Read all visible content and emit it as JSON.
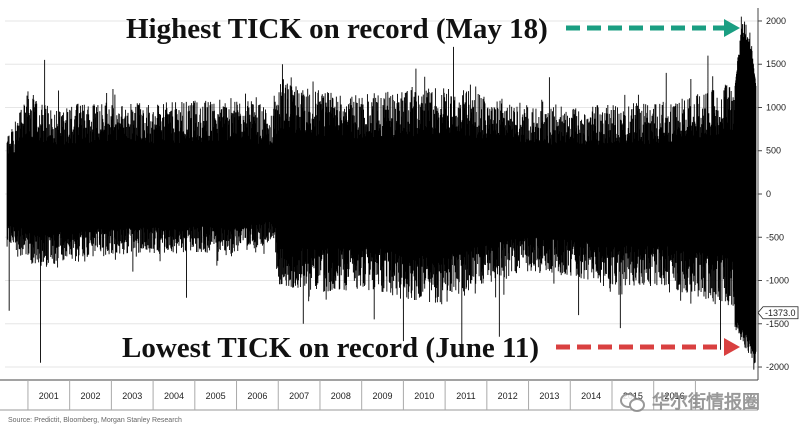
{
  "chart_data": {
    "type": "bar",
    "description_of_marks": "daily NYSE TICK high/low range",
    "x_ticks": [
      "2001",
      "2002",
      "2003",
      "2004",
      "2005",
      "2006",
      "2007",
      "2008",
      "2009",
      "2010",
      "2011",
      "2012",
      "2013",
      "2014",
      "2015",
      "2016"
    ],
    "y_ticks": [
      2000,
      1500,
      1000,
      500,
      0,
      -500,
      -1000,
      -1500,
      -2000
    ],
    "ylim": [
      -2150,
      2150
    ],
    "last_value_label": "-1373.0",
    "last_value": -1373.0,
    "annotations": {
      "highest": "Highest TICK on record (May 18)",
      "lowest": "Lowest TICK on record (June 11)"
    },
    "record_high": 2050,
    "record_low": -2030,
    "bar_color": "#000000",
    "arrow_high_color": "#1a9e82",
    "arrow_low_color": "#d94040",
    "envelope": [
      {
        "x": 2000.5,
        "hi": 700,
        "lo": -550
      },
      {
        "x": 2001.0,
        "hi": 1200,
        "lo": -800
      },
      {
        "x": 2001.5,
        "hi": 1000,
        "lo": -850
      },
      {
        "x": 2002.0,
        "hi": 1050,
        "lo": -750
      },
      {
        "x": 2003.0,
        "hi": 1100,
        "lo": -720
      },
      {
        "x": 2004.0,
        "hi": 1050,
        "lo": -700
      },
      {
        "x": 2005.0,
        "hi": 1080,
        "lo": -680
      },
      {
        "x": 2006.0,
        "hi": 1120,
        "lo": -700
      },
      {
        "x": 2006.9,
        "hi": 1000,
        "lo": -550
      },
      {
        "x": 2007.0,
        "hi": 1300,
        "lo": -1050
      },
      {
        "x": 2008.0,
        "hi": 1200,
        "lo": -1150
      },
      {
        "x": 2009.0,
        "hi": 1150,
        "lo": -1100
      },
      {
        "x": 2010.0,
        "hi": 1200,
        "lo": -1200
      },
      {
        "x": 2011.0,
        "hi": 1250,
        "lo": -1300
      },
      {
        "x": 2012.0,
        "hi": 1150,
        "lo": -1050
      },
      {
        "x": 2013.0,
        "hi": 1050,
        "lo": -900
      },
      {
        "x": 2014.0,
        "hi": 1000,
        "lo": -950
      },
      {
        "x": 2015.0,
        "hi": 1050,
        "lo": -1100
      },
      {
        "x": 2016.0,
        "hi": 1050,
        "lo": -1050
      },
      {
        "x": 2017.0,
        "hi": 1150,
        "lo": -1200
      },
      {
        "x": 2017.9,
        "hi": 1300,
        "lo": -1300
      }
    ],
    "spikes": [
      {
        "x": 2000.55,
        "v": -1350
      },
      {
        "x": 2001.3,
        "v": -1950
      },
      {
        "x": 2001.4,
        "v": 1550
      },
      {
        "x": 2004.8,
        "v": -1200
      },
      {
        "x": 2007.1,
        "v": 1500
      },
      {
        "x": 2007.6,
        "v": -1500
      },
      {
        "x": 2009.3,
        "v": -1450
      },
      {
        "x": 2010.0,
        "v": -1700
      },
      {
        "x": 2010.3,
        "v": 1450
      },
      {
        "x": 2011.2,
        "v": 1700
      },
      {
        "x": 2011.4,
        "v": -1750
      },
      {
        "x": 2012.3,
        "v": -1650
      },
      {
        "x": 2013.5,
        "v": 1350
      },
      {
        "x": 2014.2,
        "v": -1400
      },
      {
        "x": 2015.2,
        "v": -1550
      },
      {
        "x": 2016.3,
        "v": 1400
      },
      {
        "x": 2017.3,
        "v": 1600
      },
      {
        "x": 2017.6,
        "v": -1800
      }
    ],
    "final_segment": {
      "x_start": 2017.95,
      "x_end": 2018.45,
      "hi": 2050,
      "lo": -2030
    }
  },
  "source_text": "Source: Predictit, Bloomberg, Morgan Stanley Research",
  "watermark_text": "华尔街情报圈"
}
